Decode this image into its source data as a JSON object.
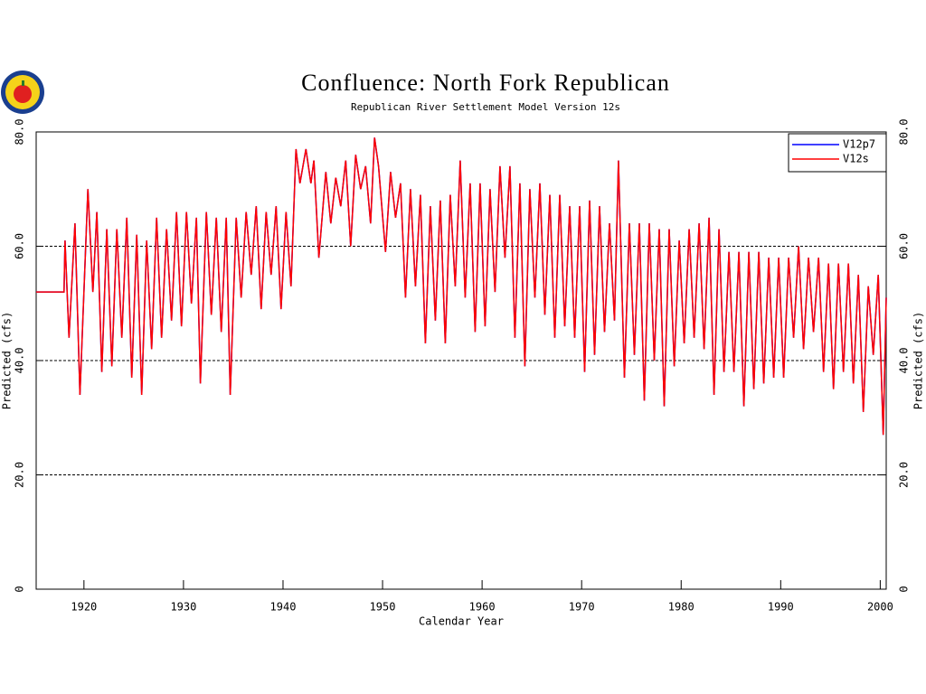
{
  "chart_data": {
    "type": "line",
    "title": "Confluence: North Fork Republican",
    "subtitle": "Republican River Settlement Model Version 12s",
    "xlabel": "Calendar Year",
    "ylabel": "Predicted (cfs)",
    "y2label": "Predicted (cfs)",
    "xlim": [
      1915.2,
      2000.6
    ],
    "xticks": [
      1920,
      1930,
      1940,
      1950,
      1960,
      1970,
      1980,
      1990,
      2000
    ],
    "ylim": [
      0,
      80
    ],
    "yticks": [
      0,
      {
        "value": 20,
        "label": "20.0"
      },
      {
        "value": 40,
        "label": "40.0"
      },
      {
        "value": 60,
        "label": "60.0"
      },
      {
        "value": 80,
        "label": "80.0"
      }
    ],
    "y2lim": [
      0,
      80
    ],
    "y2ticks": [
      0,
      {
        "value": 20,
        "label": "20.0"
      },
      {
        "value": 40,
        "label": "40.0"
      },
      {
        "value": 60,
        "label": "60.0"
      },
      {
        "value": 80,
        "label": "80.0"
      }
    ],
    "grid": true,
    "legend": "upper right",
    "x": [
      1915.2,
      1918.0,
      1918.1,
      1918.5,
      1919.1,
      1919.6,
      1920.4,
      1920.9,
      1921.3,
      1921.8,
      1922.3,
      1922.8,
      1923.3,
      1923.8,
      1924.3,
      1924.8,
      1925.3,
      1925.8,
      1926.3,
      1926.8,
      1927.3,
      1927.8,
      1928.3,
      1928.8,
      1929.3,
      1929.8,
      1930.3,
      1930.8,
      1931.3,
      1931.7,
      1932.3,
      1932.8,
      1933.3,
      1933.8,
      1934.3,
      1934.7,
      1935.3,
      1935.8,
      1936.3,
      1936.8,
      1937.3,
      1937.8,
      1938.3,
      1938.8,
      1939.3,
      1939.8,
      1940.3,
      1940.8,
      1941.3,
      1941.7,
      1942.3,
      1942.8,
      1943.1,
      1943.6,
      1944.3,
      1944.8,
      1945.3,
      1945.8,
      1946.3,
      1946.8,
      1947.3,
      1947.8,
      1948.3,
      1948.8,
      1949.2,
      1949.6,
      1950.3,
      1950.8,
      1951.3,
      1951.8,
      1952.3,
      1952.8,
      1953.3,
      1953.8,
      1954.3,
      1954.8,
      1955.3,
      1955.8,
      1956.3,
      1956.8,
      1957.3,
      1957.8,
      1958.3,
      1958.8,
      1959.3,
      1959.8,
      1960.3,
      1960.8,
      1961.3,
      1961.8,
      1962.3,
      1962.8,
      1963.3,
      1963.8,
      1964.3,
      1964.8,
      1965.3,
      1965.8,
      1966.3,
      1966.8,
      1967.3,
      1967.8,
      1968.3,
      1968.8,
      1969.3,
      1969.8,
      1970.3,
      1970.8,
      1971.3,
      1971.8,
      1972.3,
      1972.8,
      1973.3,
      1973.7,
      1974.3,
      1974.8,
      1975.3,
      1975.8,
      1976.3,
      1976.8,
      1977.3,
      1977.8,
      1978.3,
      1978.8,
      1979.3,
      1979.8,
      1980.3,
      1980.8,
      1981.3,
      1981.8,
      1982.3,
      1982.8,
      1983.3,
      1983.8,
      1984.3,
      1984.8,
      1985.3,
      1985.8,
      1986.3,
      1986.8,
      1987.3,
      1987.8,
      1988.3,
      1988.8,
      1989.3,
      1989.8,
      1990.3,
      1990.8,
      1991.3,
      1991.8,
      1992.3,
      1992.8,
      1993.3,
      1993.8,
      1994.3,
      1994.8,
      1995.3,
      1995.8,
      1996.3,
      1996.8,
      1997.3,
      1997.8,
      1998.3,
      1998.8,
      1999.3,
      1999.8,
      2000.3,
      2000.6
    ],
    "series": [
      {
        "name": "V12p7",
        "color": "#0000ff",
        "values": [
          52,
          52,
          61,
          44,
          64,
          34,
          70,
          52,
          66,
          38,
          63,
          39,
          63,
          44,
          65,
          37,
          62,
          34,
          61,
          42,
          65,
          44,
          63,
          47,
          66,
          46,
          66,
          50,
          65,
          36,
          66,
          48,
          65,
          45,
          65,
          34,
          65,
          51,
          66,
          55,
          67,
          49,
          66,
          55,
          67,
          49,
          66,
          53,
          77,
          71,
          77,
          71,
          75,
          58,
          73,
          64,
          72,
          67,
          75,
          60,
          76,
          70,
          74,
          64,
          79,
          74,
          59,
          73,
          65,
          71,
          51,
          70,
          53,
          69,
          43,
          67,
          47,
          68,
          43,
          69,
          53,
          75,
          51,
          71,
          45,
          71,
          46,
          70,
          52,
          74,
          58,
          74,
          44,
          71,
          39,
          70,
          51,
          71,
          48,
          69,
          44,
          69,
          46,
          67,
          44,
          67,
          38,
          68,
          41,
          67,
          45,
          64,
          47,
          75,
          37,
          64,
          41,
          64,
          33,
          64,
          40,
          63,
          32,
          63,
          39,
          61,
          43,
          63,
          44,
          64,
          42,
          65,
          34,
          63,
          38,
          59,
          38,
          59,
          32,
          59,
          35,
          59,
          36,
          58,
          37,
          58,
          37,
          58,
          44,
          60,
          42,
          58,
          45,
          58,
          38,
          57,
          35,
          57,
          38,
          57,
          36,
          55,
          31,
          53,
          41,
          55,
          27,
          51
        ]
      },
      {
        "name": "V12s",
        "color": "#ff0000",
        "values": [
          52,
          52,
          61,
          44,
          64,
          34,
          70,
          52,
          66,
          38,
          63,
          39,
          63,
          44,
          65,
          37,
          62,
          34,
          61,
          42,
          65,
          44,
          63,
          47,
          66,
          46,
          66,
          50,
          65,
          36,
          66,
          48,
          65,
          45,
          65,
          34,
          65,
          51,
          66,
          55,
          67,
          49,
          66,
          55,
          67,
          49,
          66,
          53,
          77,
          71,
          77,
          71,
          75,
          58,
          73,
          64,
          72,
          67,
          75,
          60,
          76,
          70,
          74,
          64,
          79,
          74,
          59,
          73,
          65,
          71,
          51,
          70,
          53,
          69,
          43,
          67,
          47,
          68,
          43,
          69,
          53,
          75,
          51,
          71,
          45,
          71,
          46,
          70,
          52,
          74,
          58,
          74,
          44,
          71,
          39,
          70,
          51,
          71,
          48,
          69,
          44,
          69,
          46,
          67,
          44,
          67,
          38,
          68,
          41,
          67,
          45,
          64,
          47,
          75,
          37,
          64,
          41,
          64,
          33,
          64,
          40,
          63,
          32,
          63,
          39,
          61,
          43,
          63,
          44,
          64,
          42,
          65,
          34,
          63,
          38,
          59,
          38,
          59,
          32,
          59,
          35,
          59,
          36,
          58,
          37,
          58,
          37,
          58,
          44,
          60,
          42,
          58,
          45,
          58,
          38,
          57,
          35,
          57,
          38,
          57,
          36,
          55,
          31,
          53,
          41,
          55,
          27,
          51
        ]
      }
    ]
  }
}
